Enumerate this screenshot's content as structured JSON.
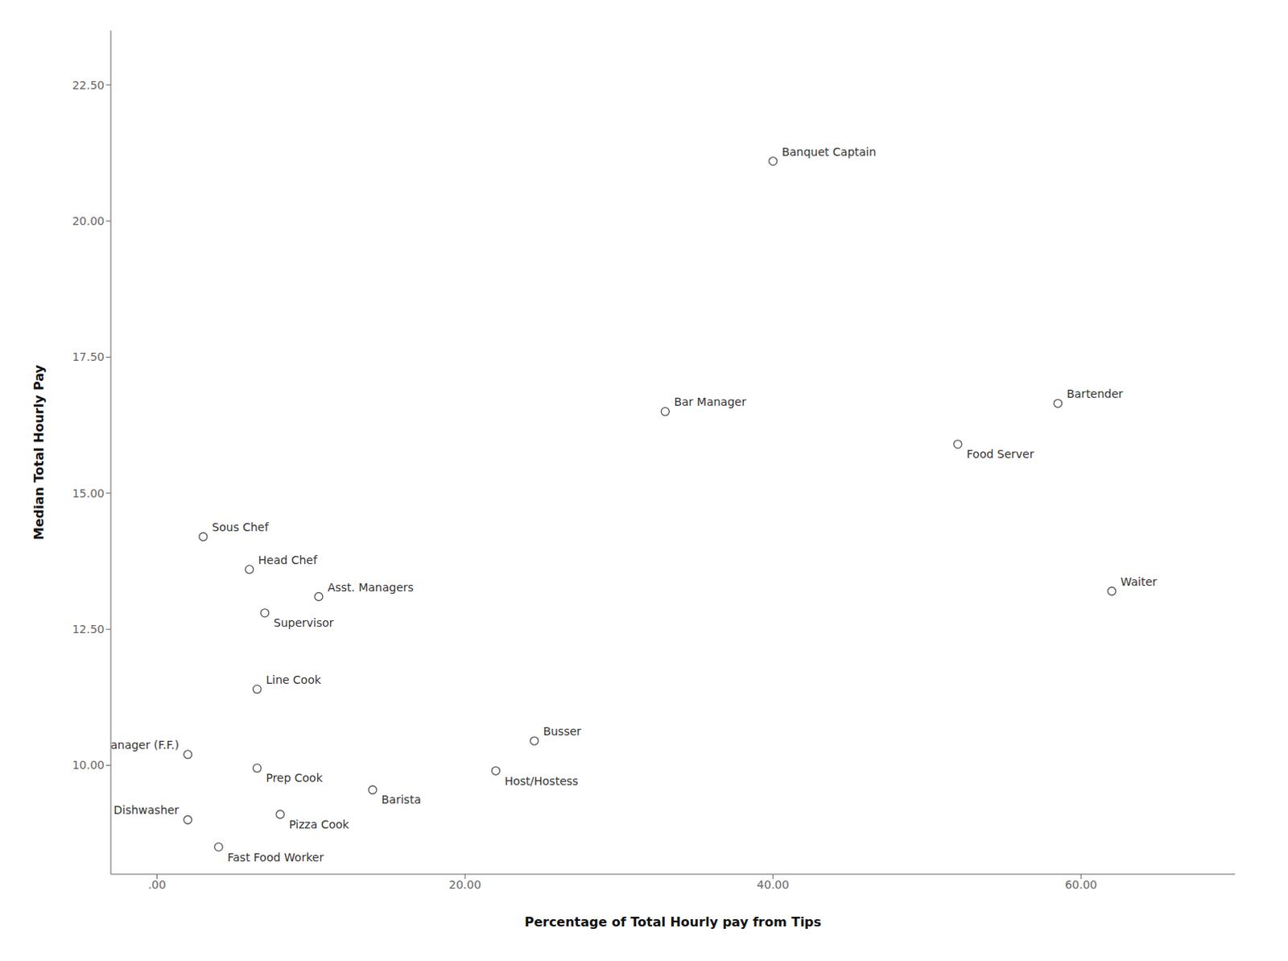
{
  "chart_data": {
    "type": "scatter",
    "xlabel": "Percentage of Total Hourly pay from Tips",
    "ylabel": "Median Total Hourly Pay",
    "x": [
      40.0,
      33.0,
      58.5,
      52.0,
      62.0,
      3.0,
      6.0,
      10.5,
      7.0,
      6.5,
      2.0,
      6.5,
      22.0,
      24.5,
      14.0,
      2.0,
      8.0,
      4.0
    ],
    "values": [
      21.1,
      16.5,
      16.65,
      15.9,
      13.2,
      14.2,
      13.6,
      13.1,
      12.8,
      11.4,
      10.2,
      9.95,
      9.9,
      10.45,
      9.55,
      9.0,
      9.1,
      8.5
    ],
    "point_labels": [
      "Banquet Captain",
      "Bar Manager",
      "Bartender",
      "Food Server",
      "Waiter",
      "Sous Chef",
      "Head Chef",
      "Asst. Managers",
      "Supervisor",
      "Line Cook",
      "Asst. Manager (F.F.)",
      "Prep Cook",
      "Host/Hostess",
      "Busser",
      "Barista",
      "Dishwasher",
      "Pizza Cook",
      "Fast Food Worker"
    ],
    "xlim": [
      -3,
      70
    ],
    "ylim": [
      8.0,
      23.5
    ],
    "xticks": [
      {
        "value": 0,
        "label": ".00"
      },
      {
        "value": 20,
        "label": "20.00"
      },
      {
        "value": 40,
        "label": "40.00"
      },
      {
        "value": 60,
        "label": "60.00"
      }
    ],
    "yticks": [
      {
        "value": 10.0,
        "label": "10.00"
      },
      {
        "value": 12.5,
        "label": "12.50"
      },
      {
        "value": 15.0,
        "label": "15.00"
      },
      {
        "value": 17.5,
        "label": "17.50"
      },
      {
        "value": 20.0,
        "label": "20.00"
      },
      {
        "value": 22.5,
        "label": "22.50"
      }
    ],
    "color": "#555555",
    "marker": "circle",
    "grid": false
  }
}
